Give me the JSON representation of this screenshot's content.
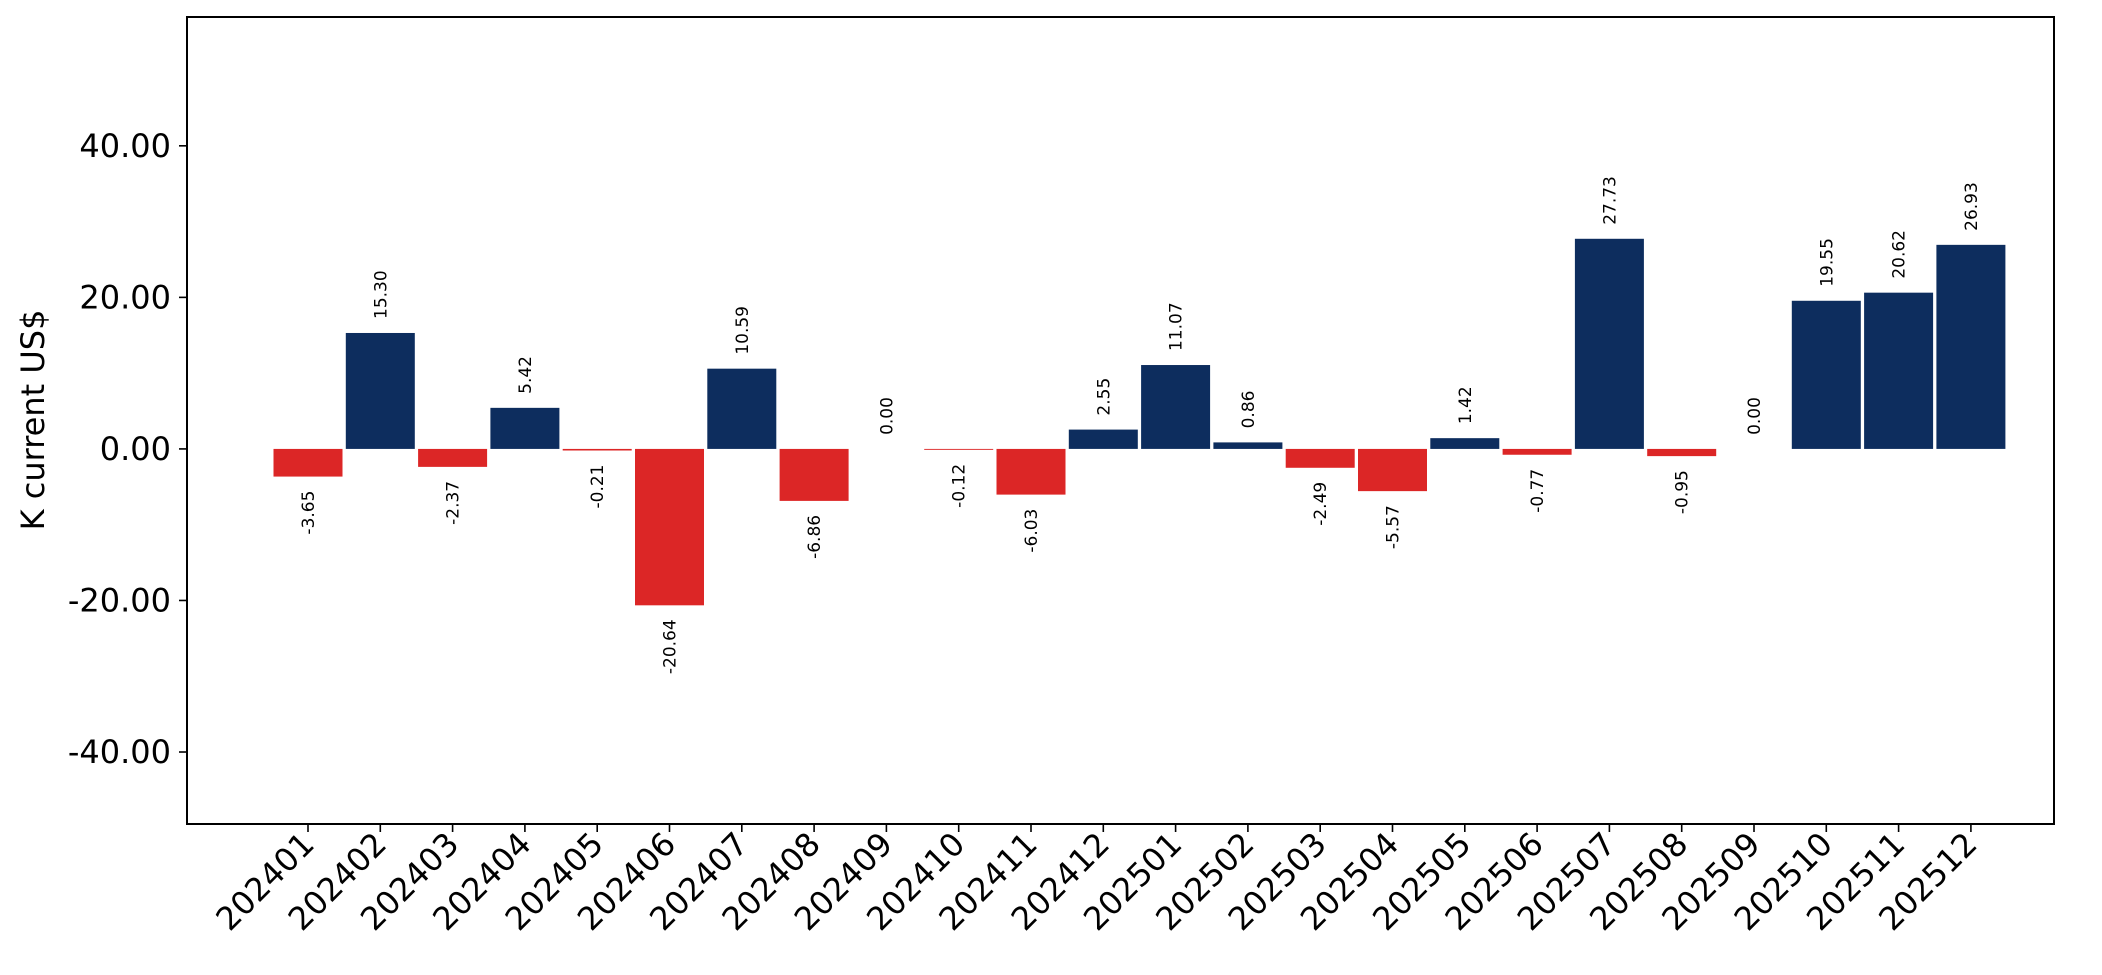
{
  "chart_data": {
    "type": "bar",
    "title": "",
    "xlabel": "",
    "ylabel": "K current US$",
    "ylim": [
      -49.5,
      57.0
    ],
    "yticks": [
      -40,
      -20,
      0,
      20,
      40
    ],
    "ytick_labels": [
      "-40.00",
      "-20.00",
      "0.00",
      "20.00",
      "40.00"
    ],
    "grid": false,
    "legend": "none",
    "categories": [
      "202401",
      "202402",
      "202403",
      "202404",
      "202405",
      "202406",
      "202407",
      "202408",
      "202409",
      "202410",
      "202411",
      "202412",
      "202501",
      "202502",
      "202503",
      "202504",
      "202505",
      "202506",
      "202507",
      "202508",
      "202509",
      "202510",
      "202511",
      "202512"
    ],
    "values": [
      -3.65,
      15.3,
      -2.37,
      5.42,
      -0.21,
      -20.64,
      10.59,
      -6.86,
      0.0,
      -0.12,
      -6.03,
      2.55,
      11.07,
      0.86,
      -2.49,
      -5.57,
      1.42,
      -0.77,
      27.73,
      -0.95,
      0.0,
      19.55,
      20.62,
      26.93
    ],
    "value_labels": [
      "-3.65",
      "15.30",
      "-2.37",
      "5.42",
      "-0.21",
      "-20.64",
      "10.59",
      "-6.86",
      "0.00",
      "-0.12",
      "-6.03",
      "2.55",
      "11.07",
      "0.86",
      "-2.49",
      "-5.57",
      "1.42",
      "-0.77",
      "27.73",
      "-0.95",
      "0.00",
      "19.55",
      "20.62",
      "26.93"
    ],
    "colors": {
      "positive": "#0d2d5e",
      "negative": "#dc2626"
    }
  }
}
